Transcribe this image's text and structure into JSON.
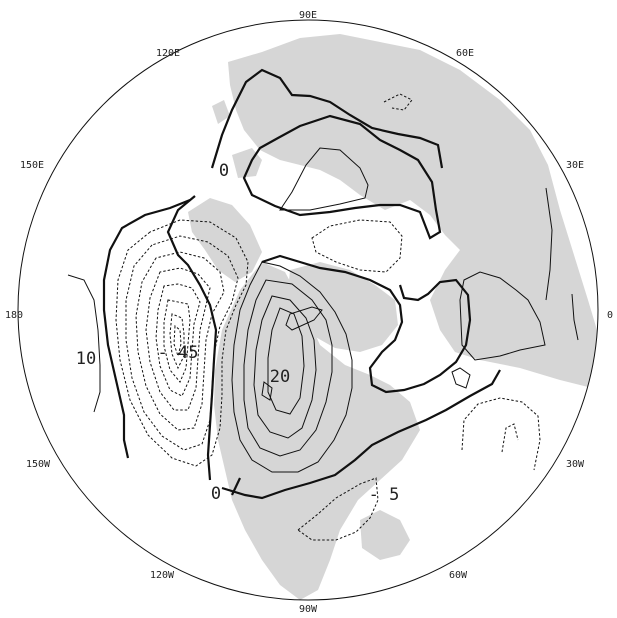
{
  "map": {
    "longitude_labels": [
      {
        "id": "lon-90e",
        "text": "90E"
      },
      {
        "id": "lon-60e",
        "text": "60E"
      },
      {
        "id": "lon-120e",
        "text": "120E"
      },
      {
        "id": "lon-30e",
        "text": "30E"
      },
      {
        "id": "lon-150e",
        "text": "150E"
      },
      {
        "id": "lon-180",
        "text": "180"
      },
      {
        "id": "lon-0",
        "text": "0"
      },
      {
        "id": "lon-150w",
        "text": "150W"
      },
      {
        "id": "lon-30w",
        "text": "30W"
      },
      {
        "id": "lon-120w",
        "text": "120W"
      },
      {
        "id": "lon-60w",
        "text": "60W"
      },
      {
        "id": "lon-90w",
        "text": "90W"
      }
    ],
    "contour_labels": [
      {
        "id": "label-0-top",
        "text": "0"
      },
      {
        "id": "label-neg45",
        "text": "- 45"
      },
      {
        "id": "label-10",
        "text": "10"
      },
      {
        "id": "label-20",
        "text": "20"
      },
      {
        "id": "label-0-bottom",
        "text": "0"
      },
      {
        "id": "label-neg5",
        "text": "- 5"
      }
    ],
    "colors": {
      "land": "#d6d6d6",
      "contour": "#111111",
      "background": "#ffffff"
    }
  }
}
